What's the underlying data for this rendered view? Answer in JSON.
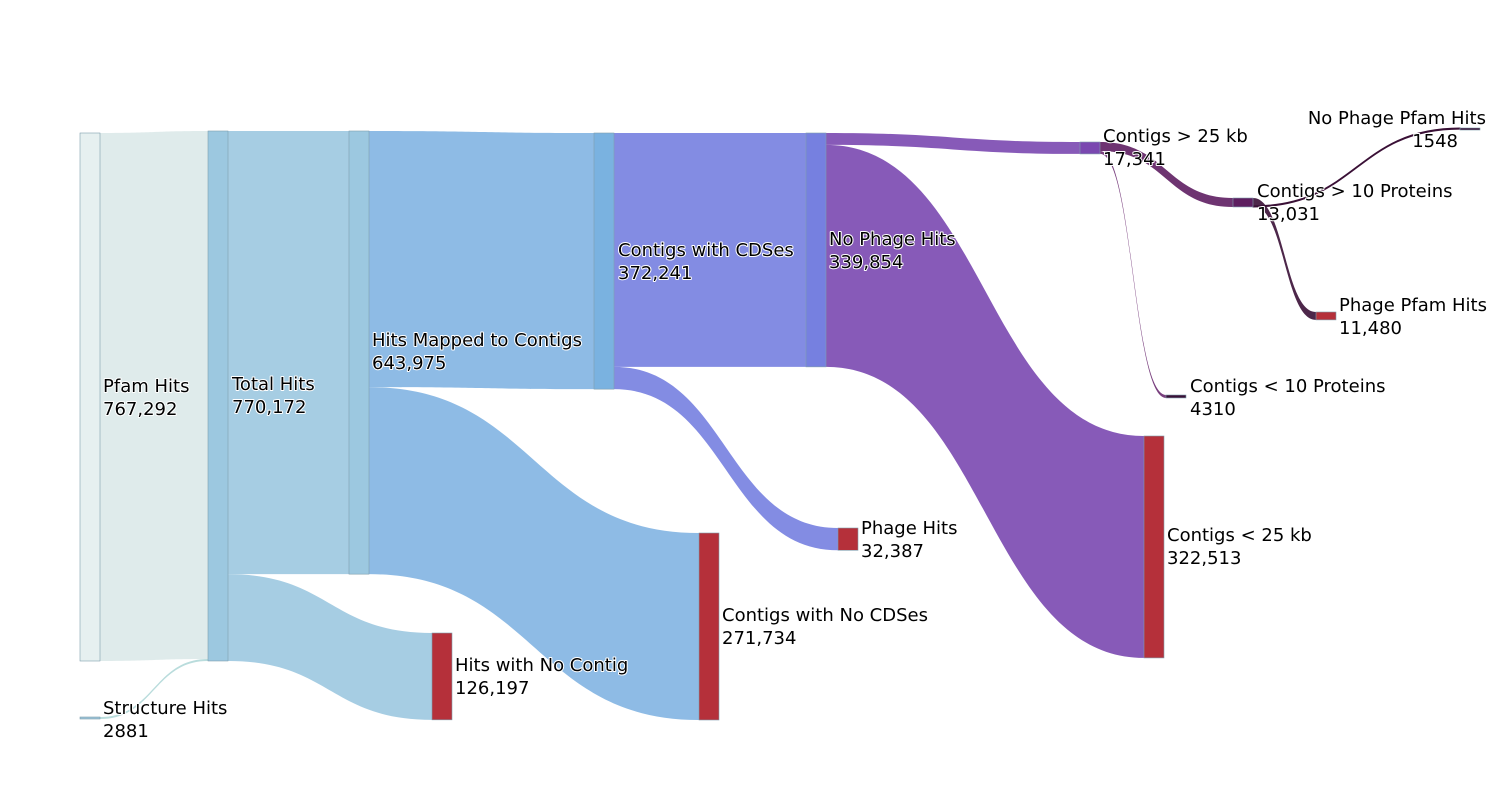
{
  "chart_data": {
    "type": "sankey",
    "nodes": [
      {
        "id": "pfam",
        "name": "Pfam Hits",
        "value_label": "767,292",
        "value": 767292,
        "color": "#e6f0f0"
      },
      {
        "id": "structure",
        "name": "Structure Hits",
        "value_label": "2881",
        "value": 2881,
        "color": "#9cc3d8"
      },
      {
        "id": "total",
        "name": "Total Hits",
        "value_label": "770,172",
        "value": 770172,
        "color": "#9cc8e0"
      },
      {
        "id": "mapped",
        "name": "Hits Mapped to Contigs",
        "value_label": "643,975",
        "value": 643975,
        "color": "#9cc8e0"
      },
      {
        "id": "nocontig",
        "name": "Hits with No Contig",
        "value_label": "126,197",
        "value": 126197,
        "color": "#b5303a"
      },
      {
        "id": "cds",
        "name": "Contigs with CDSes",
        "value_label": "372,241",
        "value": 372241,
        "color": "#7ab2e0"
      },
      {
        "id": "nocds",
        "name": "Contigs with No CDSes",
        "value_label": "271,734",
        "value": 271734,
        "color": "#b5303a"
      },
      {
        "id": "nophage",
        "name": "No Phage Hits",
        "value_label": "339,854",
        "value": 339854,
        "color": "#7680e0"
      },
      {
        "id": "phage",
        "name": "Phage Hits",
        "value_label": "32,387",
        "value": 32387,
        "color": "#b5303a"
      },
      {
        "id": "gt25",
        "name": "Contigs > 25 kb",
        "value_label": "17,341",
        "value": 17341,
        "color": "#7a48b0"
      },
      {
        "id": "lt25",
        "name": "Contigs < 25 kb",
        "value_label": "322,513",
        "value": 322513,
        "color": "#b5303a"
      },
      {
        "id": "gt10",
        "name": "Contigs > 10 Proteins",
        "value_label": "13,031",
        "value": 13031,
        "color": "#5e1e60"
      },
      {
        "id": "lt10",
        "name": "Contigs < 10 Proteins",
        "value_label": "4310",
        "value": 4310,
        "color": "#3a1036"
      },
      {
        "id": "phagepfam",
        "name": "Phage Pfam Hits",
        "value_label": "11,480",
        "value": 11480,
        "color": "#b5303a"
      },
      {
        "id": "nophagepfam",
        "name": "No Phage Pfam Hits",
        "value_label": "1548",
        "value": 1548,
        "color": "#3a1036"
      }
    ],
    "links": [
      {
        "source": "pfam",
        "target": "total",
        "value": 767292,
        "color": "#dbe9e9"
      },
      {
        "source": "structure",
        "target": "total",
        "value": 2881,
        "color": "#b9dcdc"
      },
      {
        "source": "total",
        "target": "mapped",
        "value": 643975,
        "color": "#9cc8e0"
      },
      {
        "source": "total",
        "target": "nocontig",
        "value": 126197,
        "color": "#9cc8e0"
      },
      {
        "source": "mapped",
        "target": "cds",
        "value": 372241,
        "color": "#82b4e2"
      },
      {
        "source": "mapped",
        "target": "nocds",
        "value": 271734,
        "color": "#82b4e2"
      },
      {
        "source": "cds",
        "target": "nophage",
        "value": 339854,
        "color": "#7680e0"
      },
      {
        "source": "cds",
        "target": "phage",
        "value": 32387,
        "color": "#7680e0"
      },
      {
        "source": "nophage",
        "target": "gt25",
        "value": 17341,
        "color": "#7a48b0"
      },
      {
        "source": "nophage",
        "target": "lt25",
        "value": 322513,
        "color": "#7a48b0"
      },
      {
        "source": "gt25",
        "target": "gt10",
        "value": 13031,
        "color": "#5e1e62"
      },
      {
        "source": "gt25",
        "target": "lt10",
        "value": 4310,
        "color": "#6a2a70"
      },
      {
        "source": "gt10",
        "target": "phagepfam",
        "value": 11480,
        "color": "#3a1036"
      },
      {
        "source": "gt10",
        "target": "nophagepfam",
        "value": 1548,
        "color": "#3a1036"
      }
    ]
  }
}
